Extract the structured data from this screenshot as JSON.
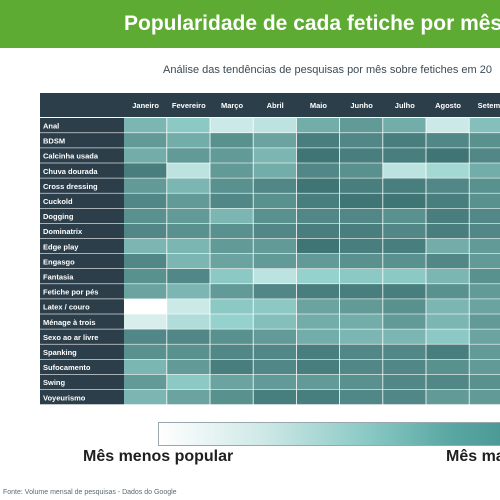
{
  "title": "Popularidade de cada fetiche por mês no",
  "subtitle": "Análise das tendências de pesquisas por mês sobre fetiches em 20",
  "legend": {
    "low_label": "Mês menos popular",
    "high_label": "Mês ma"
  },
  "footer": "Fonte: Volume mensal de pesquisas - Dados do Google",
  "colors": {
    "banner": "#5dab32",
    "header_bg": "#2c3e4a",
    "label_bg": "#2c3e4a",
    "scale_low": "#ffffff",
    "scale_high": "#2e6262"
  },
  "chart_data": {
    "type": "heatmap",
    "title": "Popularidade de cada fetiche por mês no",
    "subtitle": "Análise das tendências de pesquisas por mês sobre fetiches em 20",
    "columns": [
      "Janeiro",
      "Fevereiro",
      "Março",
      "Abril",
      "Maio",
      "Junho",
      "Julho",
      "Agosto",
      "Setemb"
    ],
    "rows": [
      "Anal",
      "BDSM",
      "Calcinha usada",
      "Chuva dourada",
      "Cross dressing",
      "Cuckold",
      "Dogging",
      "Dominatrix",
      "Edge play",
      "Engasgo",
      "Fantasia",
      "Fetiche por pés",
      "Latex / couro",
      "Ménage à trois",
      "Sexo ao ar livre",
      "Spanking",
      "Sufocamento",
      "Swing",
      "Voyeurismo"
    ],
    "values": [
      [
        0.55,
        0.45,
        0.2,
        0.25,
        0.6,
        0.7,
        0.6,
        0.2,
        0.5
      ],
      [
        0.7,
        0.6,
        0.75,
        0.65,
        0.85,
        0.8,
        0.85,
        0.8,
        0.75
      ],
      [
        0.6,
        0.7,
        0.7,
        0.55,
        0.9,
        0.85,
        0.85,
        0.9,
        0.8
      ],
      [
        0.85,
        0.25,
        0.7,
        0.6,
        0.8,
        0.75,
        0.25,
        0.35,
        0.6
      ],
      [
        0.7,
        0.55,
        0.75,
        0.8,
        0.9,
        0.85,
        0.85,
        0.8,
        0.75
      ],
      [
        0.8,
        0.7,
        0.8,
        0.75,
        0.85,
        0.9,
        0.9,
        0.85,
        0.75
      ],
      [
        0.75,
        0.7,
        0.55,
        0.75,
        0.8,
        0.8,
        0.75,
        0.85,
        0.8
      ],
      [
        0.8,
        0.75,
        0.75,
        0.8,
        0.85,
        0.85,
        0.8,
        0.85,
        0.8
      ],
      [
        0.55,
        0.55,
        0.7,
        0.7,
        0.9,
        0.85,
        0.85,
        0.6,
        0.7
      ],
      [
        0.8,
        0.55,
        0.65,
        0.7,
        0.7,
        0.75,
        0.75,
        0.8,
        0.7
      ],
      [
        0.75,
        0.8,
        0.45,
        0.25,
        0.4,
        0.45,
        0.45,
        0.55,
        0.75
      ],
      [
        0.65,
        0.55,
        0.7,
        0.8,
        0.85,
        0.85,
        0.85,
        0.75,
        0.7
      ],
      [
        0.0,
        0.2,
        0.45,
        0.45,
        0.65,
        0.7,
        0.75,
        0.55,
        0.65
      ],
      [
        0.15,
        0.3,
        0.4,
        0.5,
        0.6,
        0.6,
        0.7,
        0.55,
        0.7
      ],
      [
        0.8,
        0.8,
        0.75,
        0.7,
        0.6,
        0.55,
        0.55,
        0.45,
        0.65
      ],
      [
        0.75,
        0.75,
        0.8,
        0.8,
        0.85,
        0.8,
        0.8,
        0.85,
        0.7
      ],
      [
        0.55,
        0.7,
        0.85,
        0.8,
        0.85,
        0.8,
        0.8,
        0.75,
        0.7
      ],
      [
        0.7,
        0.45,
        0.65,
        0.7,
        0.7,
        0.75,
        0.8,
        0.8,
        0.75
      ],
      [
        0.55,
        0.65,
        0.75,
        0.85,
        0.85,
        0.8,
        0.8,
        0.7,
        0.7
      ]
    ],
    "scale": {
      "min_label": "Mês menos popular",
      "max_label": "Mês ma"
    },
    "source": "Fonte: Volume mensal de pesquisas - Dados do Google"
  }
}
